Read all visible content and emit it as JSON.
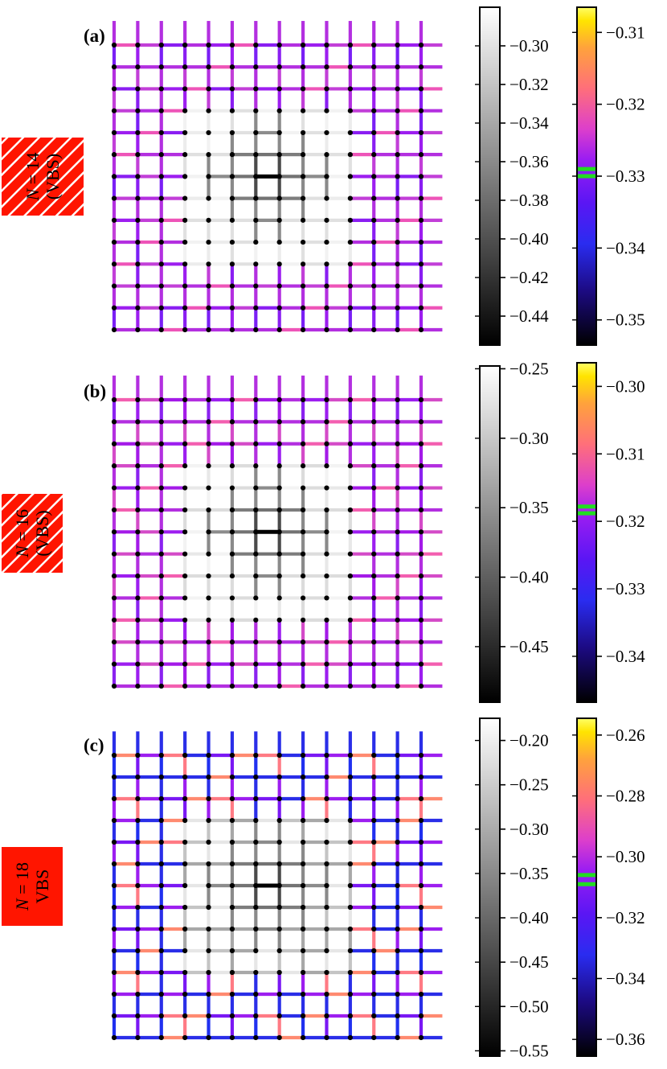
{
  "chart_data": [
    {
      "type": "heatmap",
      "panel_label": "(a)",
      "side_label": {
        "line1_var": "N",
        "line1_rest": " = 14",
        "line2": "(VBS)",
        "hatched": true
      },
      "lattice": {
        "sites_x": 14,
        "sites_y": 14
      },
      "center_bond_value": -0.45,
      "gray_colorbar": {
        "range": [
          -0.455,
          -0.28
        ],
        "ticks": [
          -0.3,
          -0.32,
          -0.34,
          -0.36,
          -0.38,
          -0.4,
          -0.42,
          -0.44
        ],
        "tick_labels": [
          "−0.30",
          "−0.32",
          "−0.34",
          "−0.36",
          "−0.38",
          "−0.40",
          "−0.42",
          "−0.44"
        ]
      },
      "color_colorbar": {
        "range": [
          -0.3535,
          -0.3065
        ],
        "ticks": [
          -0.31,
          -0.32,
          -0.33,
          -0.34,
          -0.35
        ],
        "tick_labels": [
          "−0.31",
          "−0.32",
          "−0.33",
          "−0.34",
          "−0.35"
        ],
        "markers": [
          -0.329,
          -0.33
        ]
      }
    },
    {
      "type": "heatmap",
      "panel_label": "(b)",
      "side_label": {
        "line1_var": "N",
        "line1_rest": " = 16",
        "line2": "(VBS)",
        "hatched": true
      },
      "lattice": {
        "sites_x": 14,
        "sites_y": 14
      },
      "center_bond_value": -0.48,
      "gray_colorbar": {
        "range": [
          -0.49,
          -0.248
        ],
        "ticks": [
          -0.25,
          -0.3,
          -0.35,
          -0.4,
          -0.45
        ],
        "tick_labels": [
          "−0.25",
          "−0.30",
          "−0.35",
          "−0.40",
          "−0.45"
        ]
      },
      "color_colorbar": {
        "range": [
          -0.3468,
          -0.2965
        ],
        "ticks": [
          -0.3,
          -0.31,
          -0.32,
          -0.33,
          -0.34
        ],
        "tick_labels": [
          "−0.30",
          "−0.31",
          "−0.32",
          "−0.33",
          "−0.34"
        ],
        "markers": [
          -0.3178,
          -0.3188
        ]
      }
    },
    {
      "type": "heatmap",
      "panel_label": "(c)",
      "side_label": {
        "line1_var": "N",
        "line1_rest": " = 18",
        "line2": "VBS",
        "hatched": false
      },
      "lattice": {
        "sites_x": 14,
        "sites_y": 14
      },
      "center_bond_value": -0.54,
      "gray_colorbar": {
        "range": [
          -0.556,
          -0.175
        ],
        "ticks": [
          -0.2,
          -0.25,
          -0.3,
          -0.35,
          -0.4,
          -0.45,
          -0.5,
          -0.55
        ],
        "tick_labels": [
          "−0.20",
          "−0.25",
          "−0.30",
          "−0.35",
          "−0.40",
          "−0.45",
          "−0.50",
          "−0.55"
        ]
      },
      "color_colorbar": {
        "range": [
          -0.3655,
          -0.2545
        ],
        "ticks": [
          -0.26,
          -0.28,
          -0.3,
          -0.32,
          -0.34,
          -0.36
        ],
        "tick_labels": [
          "−0.26",
          "−0.28",
          "−0.30",
          "−0.32",
          "−0.34",
          "−0.36"
        ],
        "markers": [
          -0.306,
          -0.309
        ]
      }
    }
  ]
}
